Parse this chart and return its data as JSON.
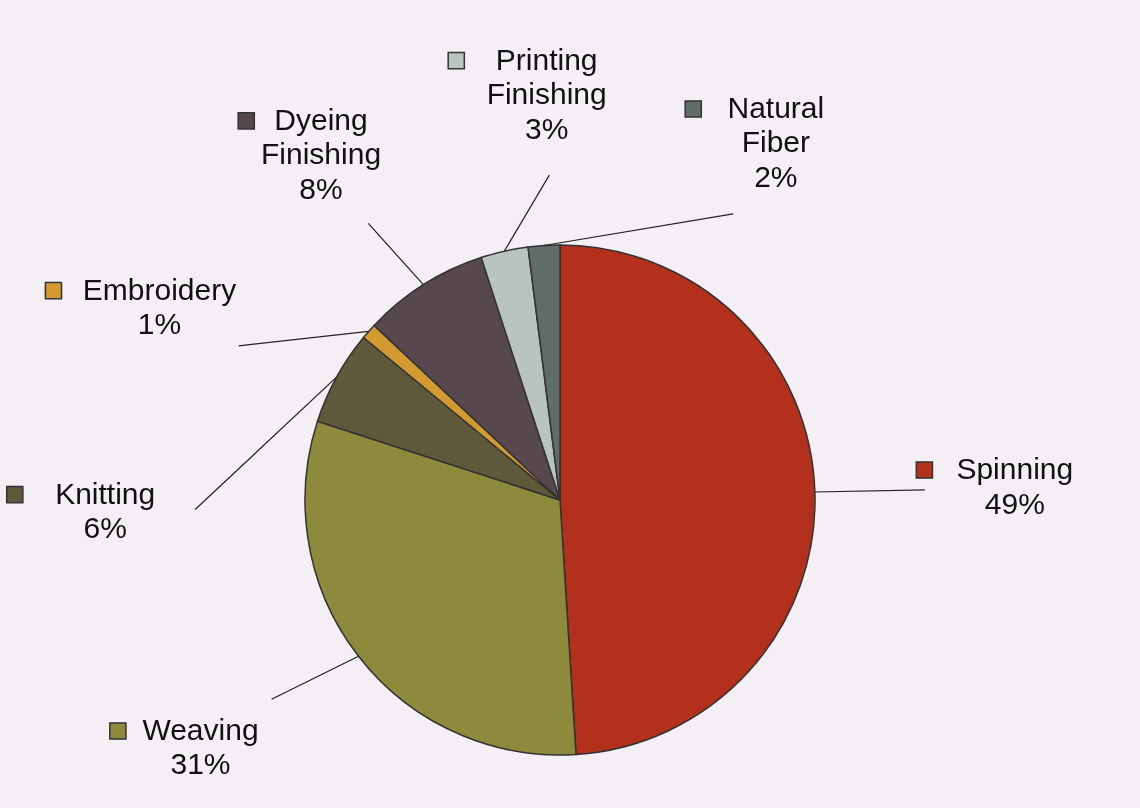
{
  "chart_data": {
    "type": "pie",
    "categories": [
      "Spinning",
      "Weaving",
      "Knitting",
      "Embroidery",
      "Dyeing Finishing",
      "Printing Finishing",
      "Natural Fiber"
    ],
    "values": [
      49,
      31,
      6,
      1,
      8,
      3,
      2
    ],
    "colors": [
      "#b3301c",
      "#8e8a3c",
      "#5f593c",
      "#d39a30",
      "#574850",
      "#b9c4c0",
      "#5e6d67"
    ],
    "value_labels": [
      "49%",
      "31%",
      "6%",
      "1%",
      "8%",
      "3%",
      "2%"
    ],
    "legend": "top"
  }
}
